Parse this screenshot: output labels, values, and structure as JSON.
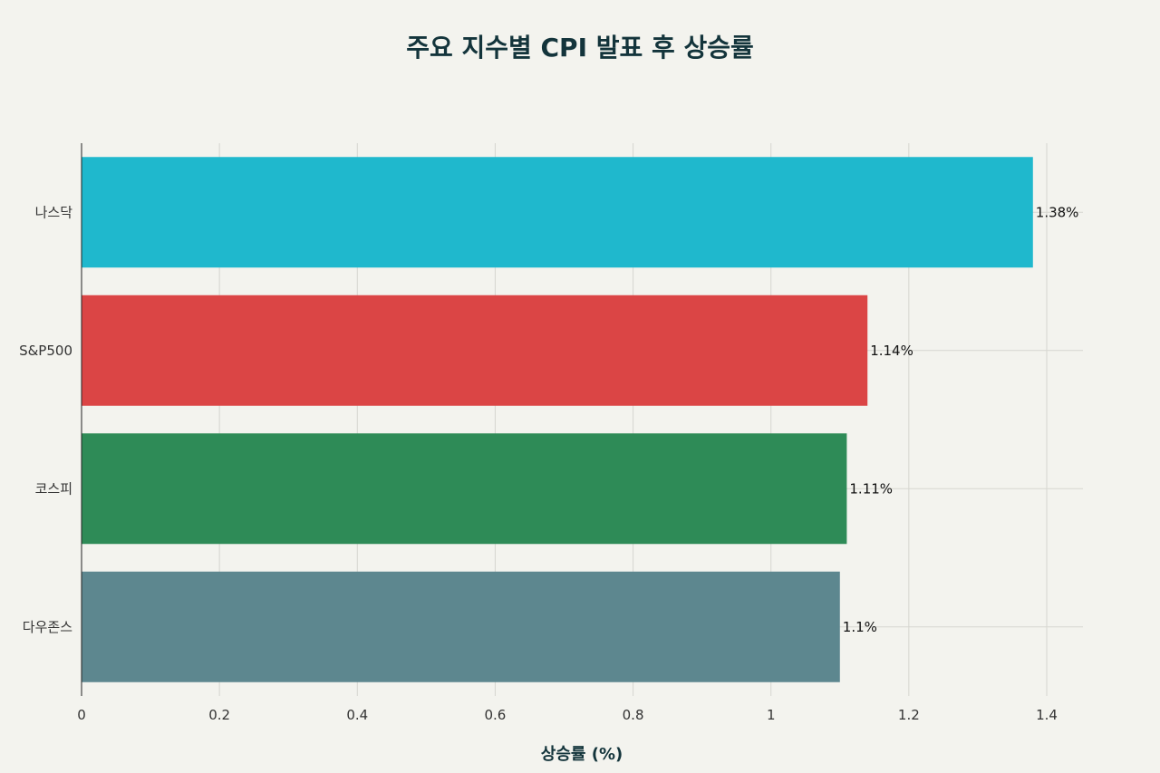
{
  "chart_data": {
    "type": "bar",
    "orientation": "horizontal",
    "title": "주요 지수별 CPI 발표 후 상승률",
    "xlabel": "상승률 (%)",
    "ylabel": "",
    "categories": [
      "나스닥",
      "S&P500",
      "코스피",
      "다우존스"
    ],
    "values": [
      1.38,
      1.14,
      1.11,
      1.1
    ],
    "value_labels": [
      "1.38%",
      "1.14%",
      "1.11%",
      "1.1%"
    ],
    "colors": [
      "#1fb8cd",
      "#db4545",
      "#2e8b57",
      "#5d878f"
    ],
    "xlim": [
      0,
      1.45
    ],
    "xticks": [
      0,
      0.2,
      0.4,
      0.6,
      0.8,
      1,
      1.2,
      1.4
    ],
    "xtick_labels": [
      "0",
      "0.2",
      "0.4",
      "0.6",
      "0.8",
      "1",
      "1.2",
      "1.4"
    ],
    "grid": true,
    "legend": "none"
  }
}
